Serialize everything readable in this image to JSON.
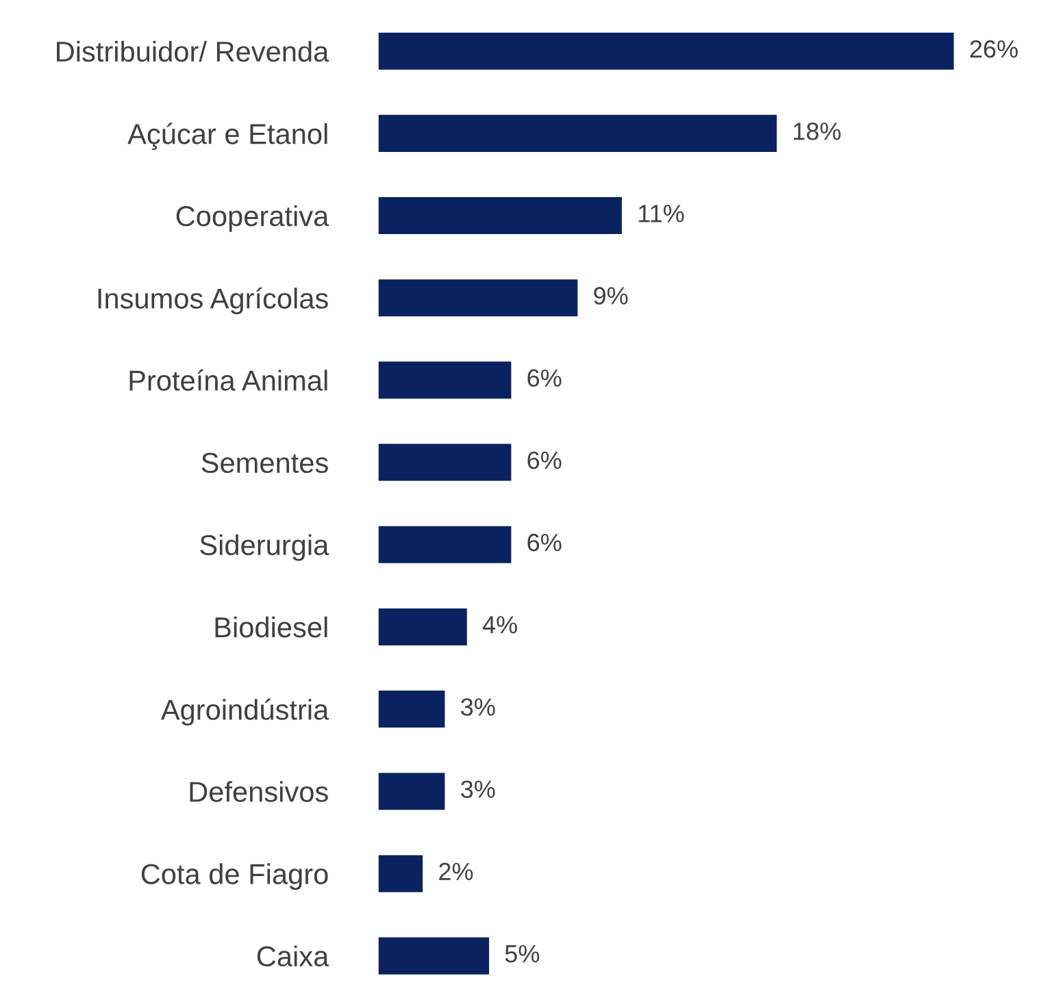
{
  "chart_data": {
    "type": "bar",
    "orientation": "horizontal",
    "categories": [
      "Distribuidor/ Revenda",
      "Açúcar e Etanol",
      "Cooperativa",
      "Insumos Agrícolas",
      "Proteína Animal",
      "Sementes",
      "Siderurgia",
      "Biodiesel",
      "Agroindústria",
      "Defensivos",
      "Cota de Fiagro",
      "Caixa"
    ],
    "values": [
      26,
      18,
      11,
      9,
      6,
      6,
      6,
      4,
      3,
      3,
      2,
      5
    ],
    "value_labels": [
      "26%",
      "18%",
      "11%",
      "9%",
      "6%",
      "6%",
      "6%",
      "4%",
      "3%",
      "3%",
      "2%",
      "5%"
    ],
    "color": "#0a2260",
    "grid": false,
    "legend": false
  }
}
